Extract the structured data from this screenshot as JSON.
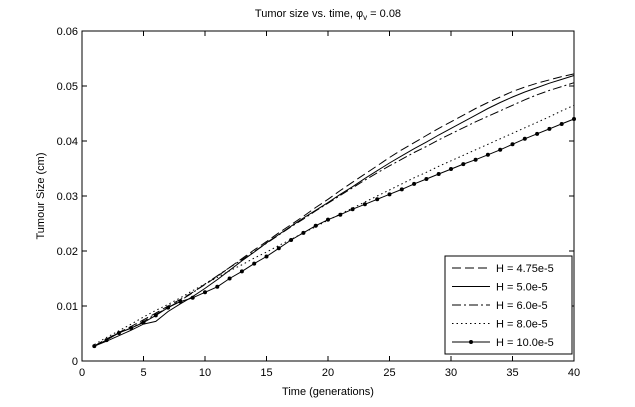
{
  "chart_data": {
    "type": "line",
    "title": "Tumor size vs. time, φ",
    "title_subscript": "v",
    "title_suffix": " = 0.08",
    "xlabel": "Time (generations)",
    "ylabel": "Tumour Size (cm)",
    "xlim": [
      0,
      40
    ],
    "ylim": [
      0,
      0.06
    ],
    "xticks": [
      0,
      5,
      10,
      15,
      20,
      25,
      30,
      35,
      40
    ],
    "yticks": [
      0,
      0.01,
      0.02,
      0.03,
      0.04,
      0.05,
      0.06
    ],
    "ytick_labels": [
      "0",
      "0.01",
      "0.02",
      "0.03",
      "0.04",
      "0.05",
      "0.06"
    ],
    "grid": false,
    "legend_position": "bottom-right",
    "x": [
      1,
      2,
      3,
      4,
      5,
      6,
      7,
      8,
      9,
      10,
      11,
      12,
      13,
      14,
      15,
      16,
      17,
      18,
      19,
      20,
      21,
      22,
      23,
      24,
      25,
      26,
      27,
      28,
      29,
      30,
      31,
      32,
      33,
      34,
      35,
      36,
      37,
      38,
      39,
      40
    ],
    "series": [
      {
        "name": "H = 4.75e-5",
        "style": "dashed",
        "color": "#000000",
        "values": [
          0.0027,
          0.004,
          0.0052,
          0.0063,
          0.0075,
          0.0087,
          0.01,
          0.0112,
          0.0125,
          0.0139,
          0.0154,
          0.017,
          0.0186,
          0.0202,
          0.0217,
          0.0233,
          0.0248,
          0.0263,
          0.0279,
          0.0294,
          0.031,
          0.0325,
          0.034,
          0.0355,
          0.037,
          0.0384,
          0.0397,
          0.041,
          0.0423,
          0.0435,
          0.0447,
          0.0459,
          0.047,
          0.048,
          0.049,
          0.0498,
          0.0505,
          0.0511,
          0.0517,
          0.0522
        ]
      },
      {
        "name": "H = 5.0e-5",
        "style": "solid",
        "color": "#000000",
        "values": [
          0.0027,
          0.0036,
          0.0046,
          0.0056,
          0.0067,
          0.0072,
          0.009,
          0.0104,
          0.0117,
          0.0132,
          0.0148,
          0.0165,
          0.0182,
          0.0198,
          0.0215,
          0.023,
          0.0245,
          0.026,
          0.0274,
          0.0288,
          0.0303,
          0.0317,
          0.0332,
          0.0346,
          0.036,
          0.0373,
          0.0386,
          0.0398,
          0.0411,
          0.0423,
          0.0435,
          0.0447,
          0.0459,
          0.047,
          0.048,
          0.0489,
          0.0497,
          0.0505,
          0.0512,
          0.0519
        ]
      },
      {
        "name": "H = 6.0e-5",
        "style": "dashdot",
        "color": "#000000",
        "values": [
          0.0027,
          0.004,
          0.0051,
          0.006,
          0.0072,
          0.0085,
          0.0097,
          0.011,
          0.0124,
          0.014,
          0.0155,
          0.017,
          0.0184,
          0.0199,
          0.0214,
          0.0229,
          0.0244,
          0.0258,
          0.0273,
          0.0287,
          0.0301,
          0.0315,
          0.0329,
          0.0342,
          0.0355,
          0.0367,
          0.0379,
          0.039,
          0.0402,
          0.0413,
          0.0424,
          0.0435,
          0.0445,
          0.0455,
          0.0465,
          0.0475,
          0.0484,
          0.0492,
          0.0499,
          0.0506
        ]
      },
      {
        "name": "H = 8.0e-5",
        "style": "dotted",
        "color": "#000000",
        "values": [
          0.003,
          0.0043,
          0.0055,
          0.0067,
          0.008,
          0.0092,
          0.0103,
          0.0115,
          0.0128,
          0.014,
          0.0152,
          0.0164,
          0.0175,
          0.0187,
          0.0198,
          0.021,
          0.0221,
          0.0233,
          0.0244,
          0.0256,
          0.0267,
          0.0278,
          0.0289,
          0.03,
          0.0311,
          0.0322,
          0.0333,
          0.0343,
          0.0354,
          0.0364,
          0.0374,
          0.0384,
          0.0394,
          0.0404,
          0.0414,
          0.0424,
          0.0434,
          0.0444,
          0.0455,
          0.0465
        ]
      },
      {
        "name": "H = 10.0e-5",
        "style": "solid-dots",
        "color": "#000000",
        "values": [
          0.0027,
          0.0038,
          0.0051,
          0.006,
          0.007,
          0.0083,
          0.0097,
          0.0108,
          0.0115,
          0.0125,
          0.0135,
          0.015,
          0.0163,
          0.0177,
          0.019,
          0.0205,
          0.022,
          0.0233,
          0.0246,
          0.0257,
          0.0266,
          0.0276,
          0.0285,
          0.0294,
          0.0303,
          0.0312,
          0.0322,
          0.0331,
          0.034,
          0.0349,
          0.0358,
          0.0366,
          0.0375,
          0.0384,
          0.0394,
          0.0404,
          0.0413,
          0.0422,
          0.0431,
          0.044
        ]
      }
    ]
  }
}
